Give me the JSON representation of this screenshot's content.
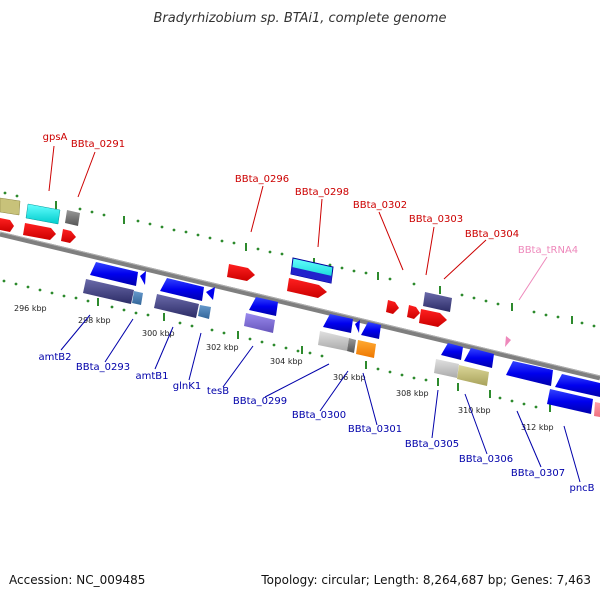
{
  "title": "Bradyrhizobium sp. BTAi1, complete genome",
  "footer": {
    "accession": "Accession: NC_009485",
    "topology": "Topology: circular; Length: 8,264,687 bp; Genes: 7,463"
  },
  "colors": {
    "backbone": "#808080",
    "tick": "#2d8a2d",
    "label_red": "#cc0000",
    "label_blue": "#0000aa",
    "label_pink": "#ee88bb"
  },
  "kbp_labels": [
    "296 kbp",
    "298 kbp",
    "300 kbp",
    "302 kbp",
    "304 kbp",
    "306 kbp",
    "308 kbp",
    "310 kbp",
    "312 kbp"
  ],
  "top_labels": [
    "gpsA",
    "BBta_0291",
    "BBta_0296",
    "BBta_0298",
    "BBta_0302",
    "BBta_0303",
    "BBta_0304",
    "BBta_tRNA4"
  ],
  "bottom_labels": [
    "amtB2",
    "BBta_0293",
    "amtB1",
    "glnK1",
    "tesB",
    "BBta_0299",
    "BBta_0300",
    "BBta_0301",
    "BBta_0305",
    "BBta_0306",
    "BBta_0307",
    "pncB"
  ]
}
